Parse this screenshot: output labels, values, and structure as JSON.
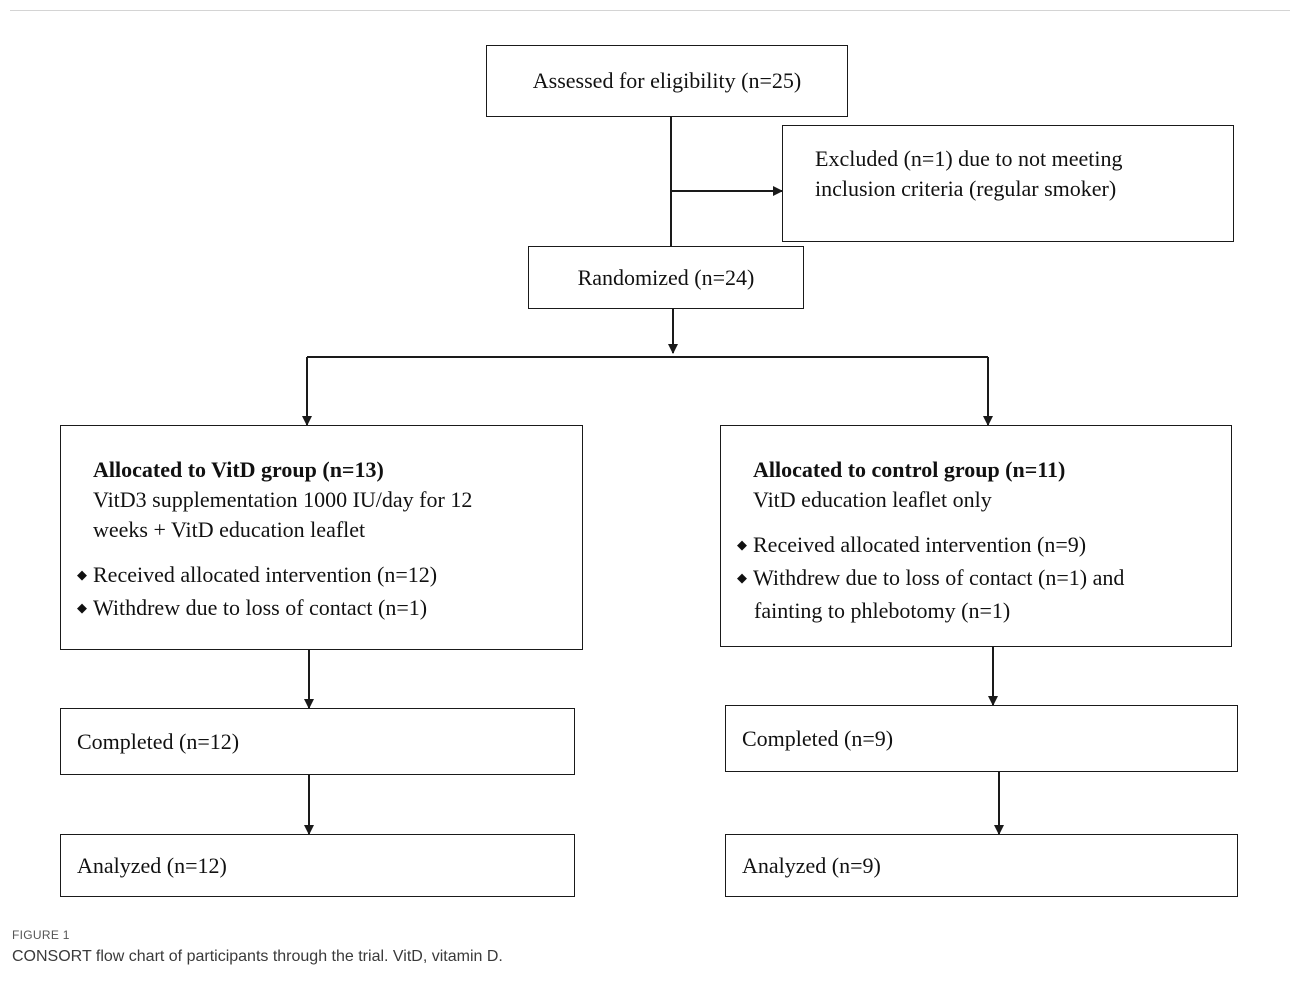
{
  "flowchart": {
    "assessed": "Assessed for eligibility (n=25)",
    "excluded": {
      "line1": "Excluded (n=1) due to not meeting",
      "line2": "inclusion criteria (regular smoker)"
    },
    "randomized": "Randomized (n=24)",
    "vitd_group": {
      "title": "Allocated to VitD group (n=13)",
      "desc_line1": "VitD3 supplementation 1000 IU/day for 12",
      "desc_line2": "weeks + VitD education leaflet",
      "bullet1": "Received allocated intervention (n=12)",
      "bullet2": "Withdrew due to loss of contact (n=1)"
    },
    "control_group": {
      "title": "Allocated to control group (n=11)",
      "desc_line1": "VitD education leaflet only",
      "bullet1": "Received allocated intervention (n=9)",
      "bullet2_line1": "Withdrew due to loss of contact (n=1) and",
      "bullet2_line2": "fainting to phlebotomy (n=1)"
    },
    "completed_left": "Completed (n=12)",
    "completed_right": "Completed (n=9)",
    "analyzed_left": "Analyzed (n=12)",
    "analyzed_right": "Analyzed (n=9)",
    "bullet_glyph": "◆"
  },
  "figure": {
    "label": "FIGURE 1",
    "caption": "CONSORT flow chart of participants through the trial. VitD, vitamin D."
  },
  "colors": {
    "line": "#1a1a1a",
    "caption_text": "#3a3a3a"
  }
}
